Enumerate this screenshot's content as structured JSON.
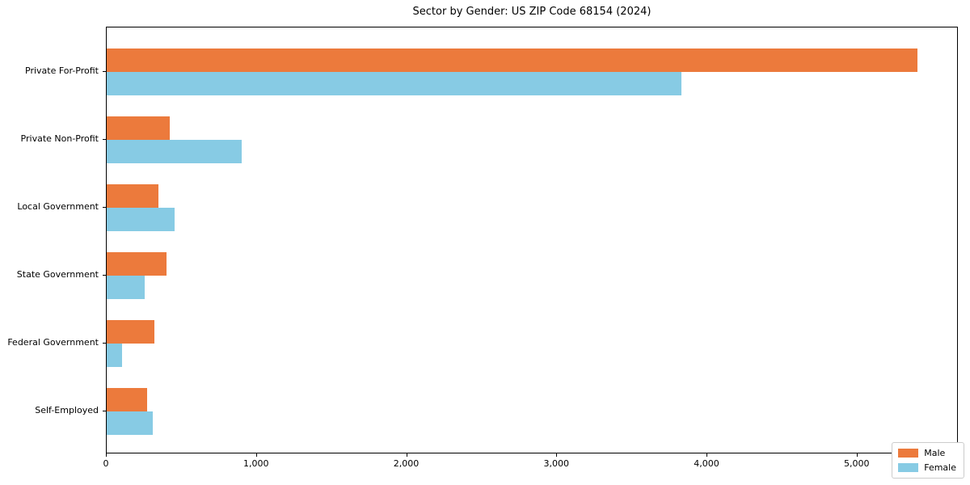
{
  "chart_data": {
    "type": "bar",
    "orientation": "horizontal",
    "title": "Sector by Gender: US ZIP Code 68154 (2024)",
    "categories": [
      "Private For-Profit",
      "Private Non-Profit",
      "Local Government",
      "State Government",
      "Federal Government",
      "Self-Employed"
    ],
    "series": [
      {
        "name": "Male",
        "color": "#EC7A3C",
        "values": [
          5400,
          420,
          345,
          400,
          320,
          270
        ]
      },
      {
        "name": "Female",
        "color": "#87CBE4",
        "values": [
          3830,
          900,
          450,
          255,
          100,
          305
        ]
      }
    ],
    "xlabel": "",
    "ylabel": "",
    "xlim": [
      0,
      5674
    ],
    "xticks": [
      0,
      1000,
      2000,
      3000,
      4000,
      5000
    ],
    "xtick_labels": [
      "0",
      "1,000",
      "2,000",
      "3,000",
      "4,000",
      "5,000"
    ],
    "grid": false,
    "legend": {
      "position": "lower-right",
      "entries": [
        "Male",
        "Female"
      ]
    },
    "colors": {
      "background": "#FFFFFF",
      "frame": "#000000",
      "legend_border": "#CCCCCC"
    }
  }
}
